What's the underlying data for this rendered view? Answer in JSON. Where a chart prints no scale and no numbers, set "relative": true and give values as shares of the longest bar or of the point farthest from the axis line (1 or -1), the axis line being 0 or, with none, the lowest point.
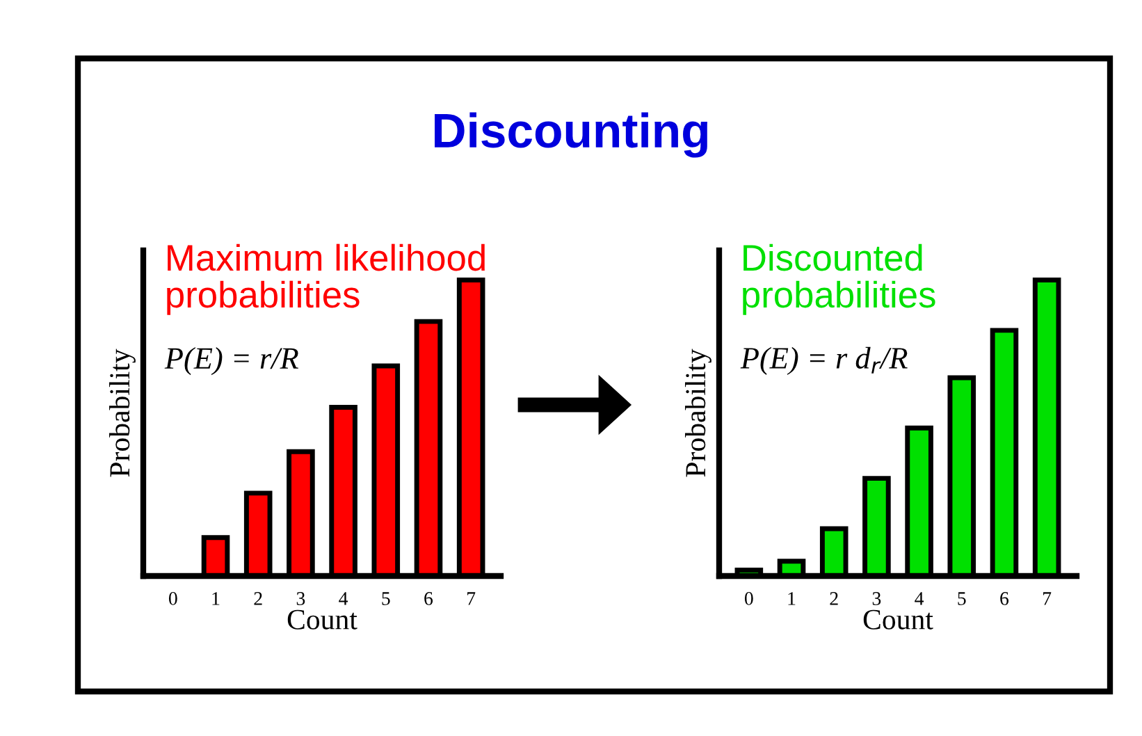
{
  "chart_data": [
    {
      "type": "bar",
      "title": "Discounting",
      "xlabel": "Count",
      "ylabel": "Probability",
      "relative": true,
      "categories": [
        "0",
        "1",
        "2",
        "3",
        "4",
        "5",
        "6",
        "7"
      ],
      "series": [
        {
          "color": "#ff0000",
          "values": [
            0,
            0.13,
            0.28,
            0.42,
            0.57,
            0.71,
            0.86,
            1
          ]
        }
      ],
      "annotations": [
        "Maximum likelihood\nprobabilities",
        "P(E) = r/R"
      ]
    },
    {
      "type": "bar",
      "xlabel": "Count",
      "ylabel": "Probability",
      "relative": true,
      "categories": [
        "0",
        "1",
        "2",
        "3",
        "4",
        "5",
        "6",
        "7"
      ],
      "series": [
        {
          "color": "#00e000",
          "values": [
            0.02,
            0.05,
            0.16,
            0.33,
            0.5,
            0.67,
            0.83,
            1
          ]
        }
      ],
      "annotations": [
        "Discounted\nprobabilities",
        "P(E) = r d$_{r}$/R"
      ]
    }
  ]
}
